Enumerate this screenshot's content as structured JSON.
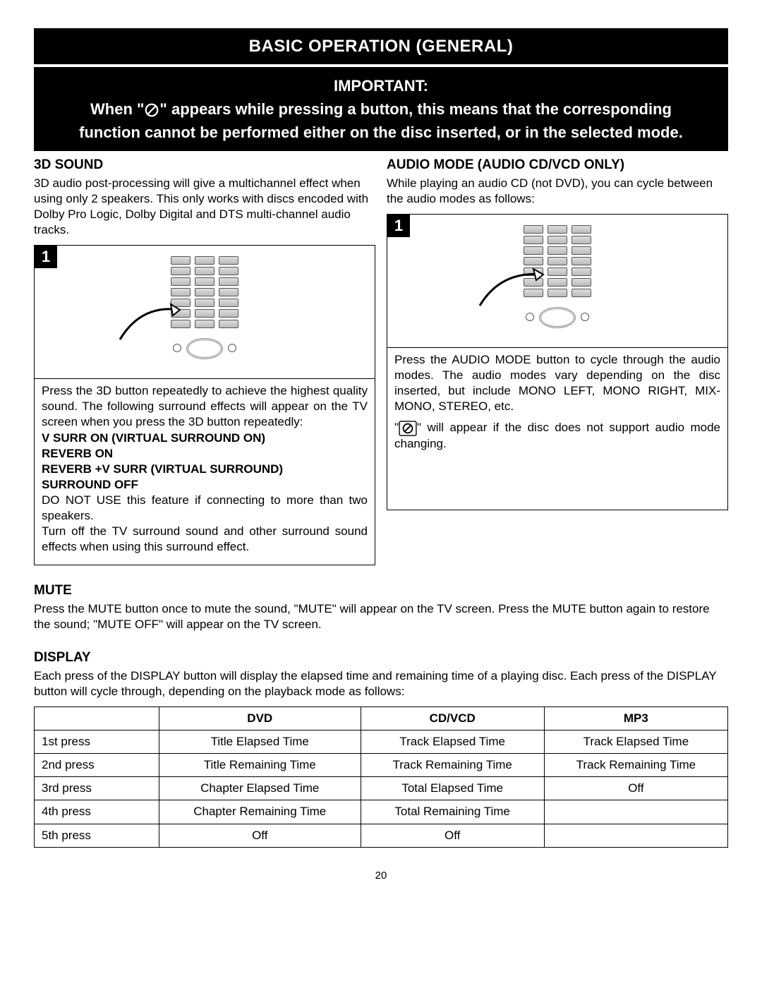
{
  "page_number": "20",
  "header": {
    "title": "BASIC OPERATION (GENERAL)",
    "important_label": "IMPORTANT:",
    "important_text_pre": "When \"",
    "important_text_post": "\" appears while pressing a button, this means that the corresponding function cannot be performed either on the disc inserted, or in the selected mode."
  },
  "left_col": {
    "heading": "3D SOUND",
    "intro": "3D audio post-processing will give a multichannel effect when using only 2 speakers. This only works with discs encoded with Dolby Pro Logic, Dolby Digital and DTS multi-channel audio tracks.",
    "step": "1",
    "desc_p1": "Press the 3D button repeatedly to achieve the highest quality sound. The following surround effects will appear on the TV screen when you press the 3D button repeatedly:",
    "mode1": "V SURR ON (VIRTUAL SURROUND ON)",
    "mode2": "REVERB ON",
    "mode3": "REVERB +V SURR (VIRTUAL SURROUND)",
    "mode4": "SURROUND OFF",
    "desc_p2": "DO NOT USE this feature if connecting to more than two speakers.",
    "desc_p3": "Turn off the TV surround sound and other surround sound effects when using this surround effect."
  },
  "right_col": {
    "heading": "AUDIO MODE (AUDIO CD/VCD ONLY)",
    "intro": "While playing an audio CD (not DVD), you can cycle between the audio modes as follows:",
    "step": "1",
    "desc_p1": "Press the AUDIO MODE button to cycle through the audio modes. The audio modes vary depending on the disc inserted, but include MONO LEFT, MONO RIGHT, MIX-MONO, STEREO, etc.",
    "desc_p2_pre": "\"",
    "desc_p2_post": "\" will appear if the disc does not support audio mode changing."
  },
  "mute": {
    "heading": "MUTE",
    "text": "Press the MUTE button once to mute the sound, \"MUTE\" will appear on the TV screen. Press the MUTE button again to restore the sound; \"MUTE OFF\" will appear on the TV screen."
  },
  "display": {
    "heading": "DISPLAY",
    "text": "Each press of the DISPLAY button will display the elapsed time and remaining time of a playing disc. Each press of the DISPLAY button will cycle through, depending on the playback mode as follows:",
    "columns": [
      "",
      "DVD",
      "CD/VCD",
      "MP3"
    ],
    "rows": [
      [
        "1st press",
        "Title Elapsed Time",
        "Track Elapsed Time",
        "Track Elapsed Time"
      ],
      [
        "2nd press",
        "Title Remaining Time",
        "Track Remaining Time",
        "Track Remaining Time"
      ],
      [
        "3rd press",
        "Chapter Elapsed Time",
        "Total Elapsed Time",
        "Off"
      ],
      [
        "4th press",
        "Chapter Remaining Time",
        "Total Remaining Time",
        ""
      ],
      [
        "5th press",
        "Off",
        "Off",
        ""
      ]
    ]
  },
  "styling": {
    "page_bg": "#ffffff",
    "header_bg": "#000000",
    "header_fg": "#ffffff",
    "text_color": "#000000",
    "border_color": "#000000",
    "button_fill": "#c8c8c8",
    "button_stroke": "#707070",
    "font_family": "Arial",
    "title_fontsize_pt": 18,
    "important_fontsize_pt": 16,
    "heading_fontsize_pt": 14,
    "body_fontsize_pt": 12
  }
}
